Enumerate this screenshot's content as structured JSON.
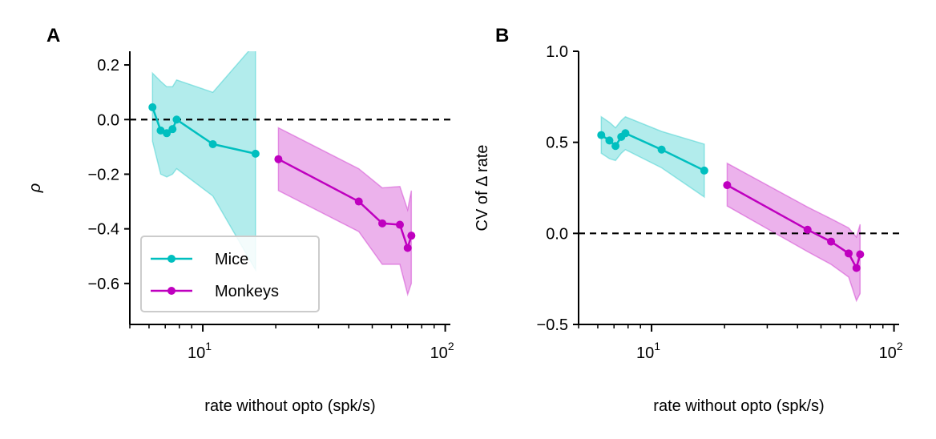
{
  "chart_data": [
    {
      "panel": "A",
      "type": "line",
      "xlabel": "rate without opto (spk/s)",
      "ylabel": "ρ",
      "xscale": "log",
      "xlim": [
        5,
        105
      ],
      "ylim": [
        -0.75,
        0.25
      ],
      "xticks": [
        {
          "value": 10,
          "base": "10",
          "exp": "1"
        },
        {
          "value": 100,
          "base": "10",
          "exp": "2"
        }
      ],
      "yticks": [
        {
          "value": 0.2,
          "label": "0.2"
        },
        {
          "value": 0.0,
          "label": "0.0"
        },
        {
          "value": -0.2,
          "label": "−0.2"
        },
        {
          "value": -0.4,
          "label": "−0.4"
        },
        {
          "value": -0.6,
          "label": "−0.6"
        }
      ],
      "hline": 0.0,
      "legend": {
        "placement": "lower-left"
      },
      "series": [
        {
          "name": "Mice",
          "color": "#00BFBF",
          "x": [
            6.2,
            6.7,
            7.1,
            7.5,
            7.8,
            11.0,
            16.5
          ],
          "y": [
            0.045,
            -0.04,
            -0.05,
            -0.035,
            0.0,
            -0.09,
            -0.125
          ],
          "lower": [
            -0.08,
            -0.2,
            -0.21,
            -0.2,
            -0.18,
            -0.28,
            -0.55
          ],
          "upper": [
            0.17,
            0.14,
            0.12,
            0.12,
            0.145,
            0.1,
            0.28
          ]
        },
        {
          "name": "Monkeys",
          "color": "#BF00BF",
          "x": [
            20.5,
            44,
            55,
            65,
            70,
            72.5
          ],
          "y": [
            -0.145,
            -0.3,
            -0.38,
            -0.385,
            -0.47,
            -0.425
          ],
          "lower": [
            -0.26,
            -0.41,
            -0.53,
            -0.53,
            -0.64,
            -0.6
          ],
          "upper": [
            -0.03,
            -0.18,
            -0.25,
            -0.245,
            -0.33,
            -0.26
          ]
        }
      ]
    },
    {
      "panel": "B",
      "type": "line",
      "xlabel": "rate without opto (spk/s)",
      "ylabel": "CV of Δ rate",
      "xscale": "log",
      "xlim": [
        5,
        105
      ],
      "ylim": [
        -0.5,
        1.0
      ],
      "xticks": [
        {
          "value": 10,
          "base": "10",
          "exp": "1"
        },
        {
          "value": 100,
          "base": "10",
          "exp": "2"
        }
      ],
      "yticks": [
        {
          "value": 1.0,
          "label": "1.0"
        },
        {
          "value": 0.5,
          "label": "0.5"
        },
        {
          "value": 0.0,
          "label": "0.0"
        },
        {
          "value": -0.5,
          "label": "−0.5"
        }
      ],
      "hline": 0.0,
      "series": [
        {
          "color": "#00BFBF",
          "x": [
            6.2,
            6.7,
            7.1,
            7.5,
            7.8,
            11.0,
            16.5
          ],
          "y": [
            0.54,
            0.51,
            0.48,
            0.53,
            0.55,
            0.46,
            0.345
          ],
          "lower": [
            0.44,
            0.41,
            0.4,
            0.44,
            0.46,
            0.36,
            0.2
          ],
          "upper": [
            0.64,
            0.61,
            0.58,
            0.62,
            0.64,
            0.56,
            0.49
          ]
        },
        {
          "color": "#BF00BF",
          "x": [
            20.5,
            44,
            55,
            65,
            70,
            72.5
          ],
          "y": [
            0.265,
            0.02,
            -0.045,
            -0.11,
            -0.19,
            -0.115
          ],
          "lower": [
            0.15,
            -0.1,
            -0.17,
            -0.24,
            -0.37,
            -0.33
          ],
          "upper": [
            0.385,
            0.145,
            0.08,
            0.03,
            -0.02,
            0.05
          ]
        }
      ]
    }
  ]
}
